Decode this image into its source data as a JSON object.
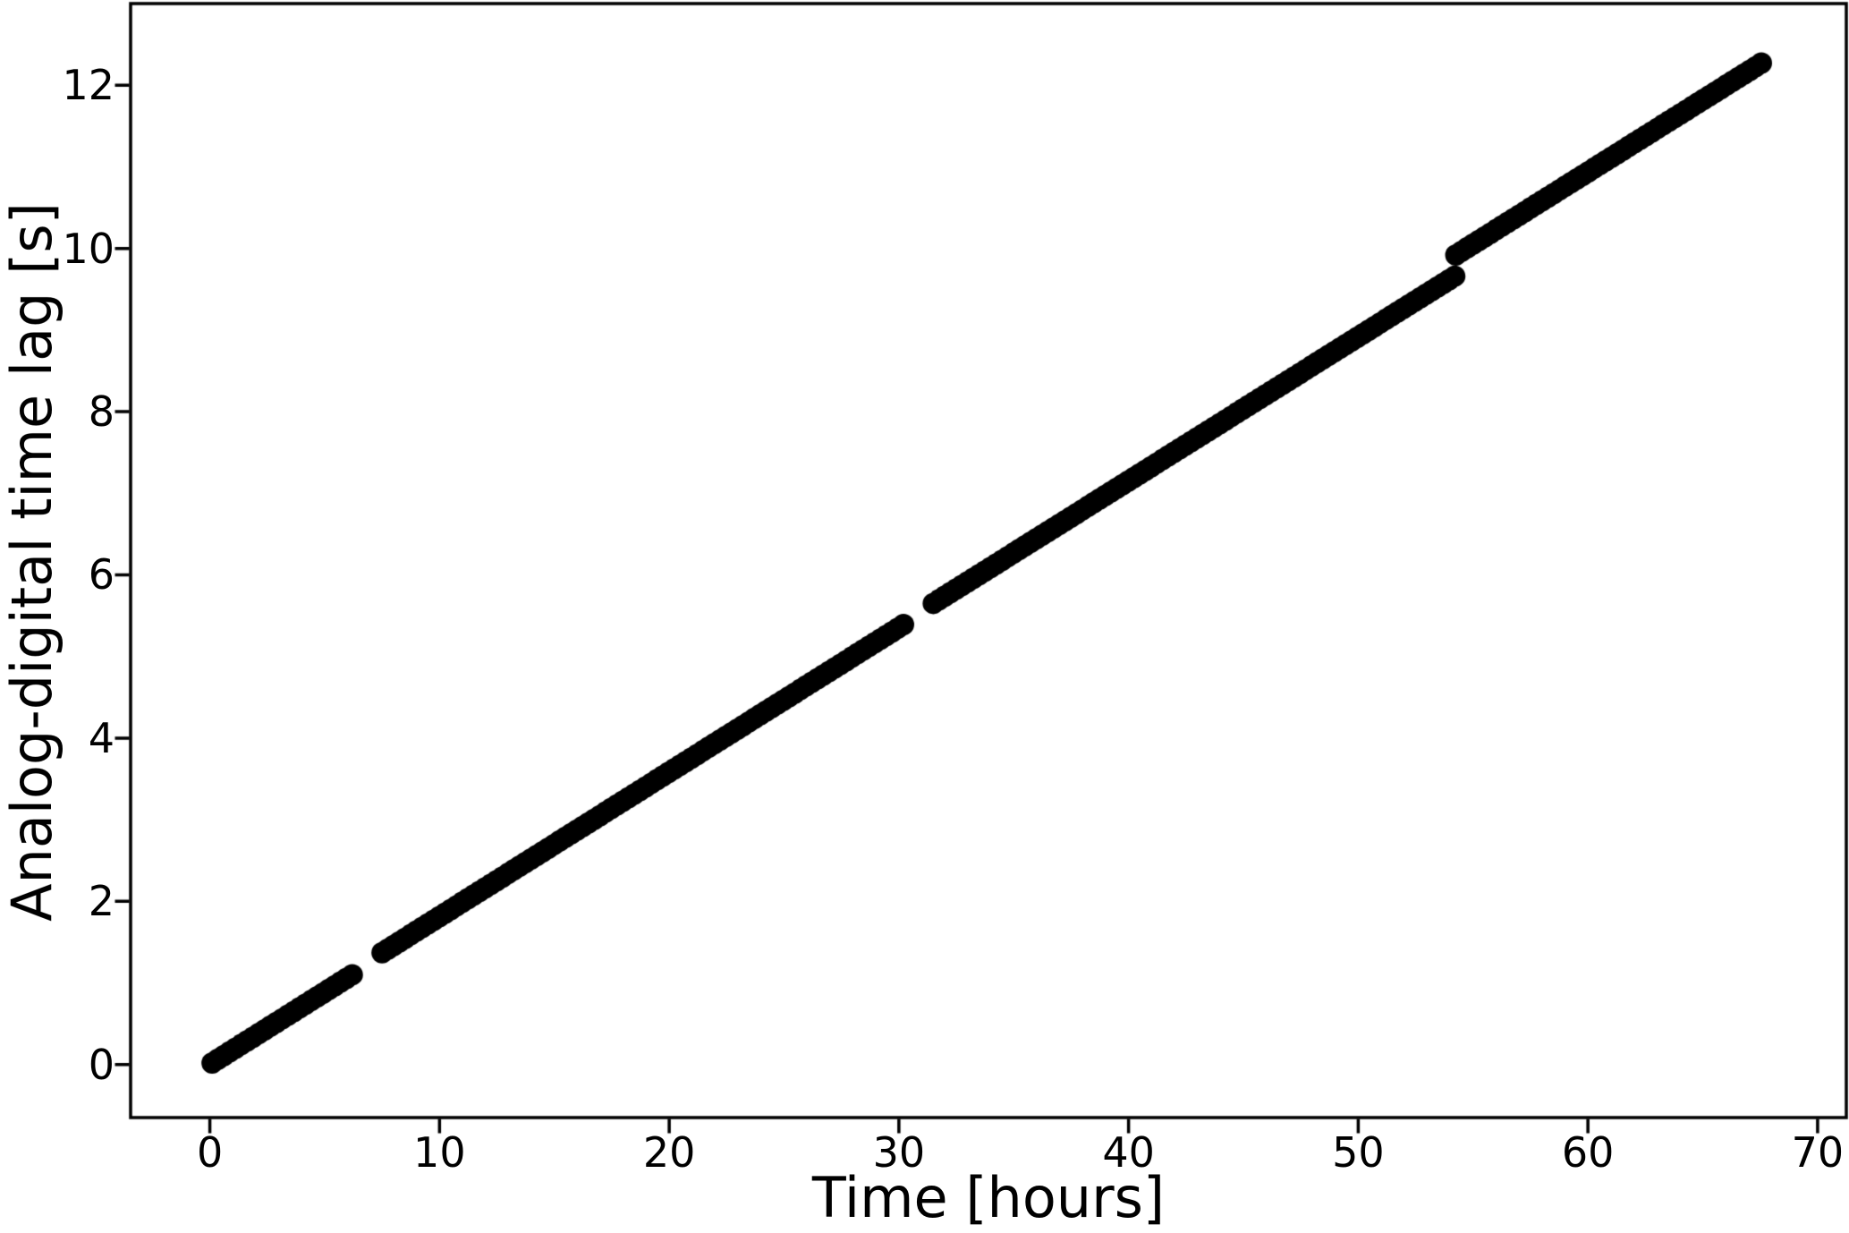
{
  "figure": {
    "background_color": "#ffffff",
    "axis_color": "#000000"
  },
  "chart_data": {
    "type": "scatter",
    "title": "",
    "xlabel": "Time [hours]",
    "ylabel": "Analog-digital time lag [s]",
    "x_ticks": [
      0,
      10,
      20,
      30,
      40,
      50,
      60,
      70
    ],
    "y_ticks": [
      0,
      2,
      4,
      6,
      8,
      10,
      12
    ],
    "xlim": [
      -3.45,
      71.25
    ],
    "ylim": [
      -0.65,
      13.0
    ],
    "grid": false,
    "legend": false,
    "marker": {
      "shape": "circle",
      "color": "#000000",
      "radius_px": 12,
      "spacing_hours": 0.25
    },
    "series": [
      {
        "name": "analog-digital time lag",
        "segments": [
          {
            "x_start": 0.1,
            "x_end": 6.2,
            "y_start": 0.02,
            "y_end": 1.1
          },
          {
            "x_start": 7.5,
            "x_end": 30.2,
            "y_start": 1.37,
            "y_end": 5.39
          },
          {
            "x_start": 31.5,
            "x_end": 54.2,
            "y_start": 5.65,
            "y_end": 9.66
          },
          {
            "x_start": 54.25,
            "x_end": 67.55,
            "y_start": 9.92,
            "y_end": 12.27
          }
        ]
      }
    ],
    "slope_seconds_per_hour": 0.177,
    "features": {
      "data_gaps_hours": [
        [
          6.2,
          7.5
        ],
        [
          30.2,
          31.5
        ]
      ],
      "upward_jump": {
        "at_hours": 54.2,
        "from_s": 9.66,
        "to_s": 9.92
      }
    }
  }
}
